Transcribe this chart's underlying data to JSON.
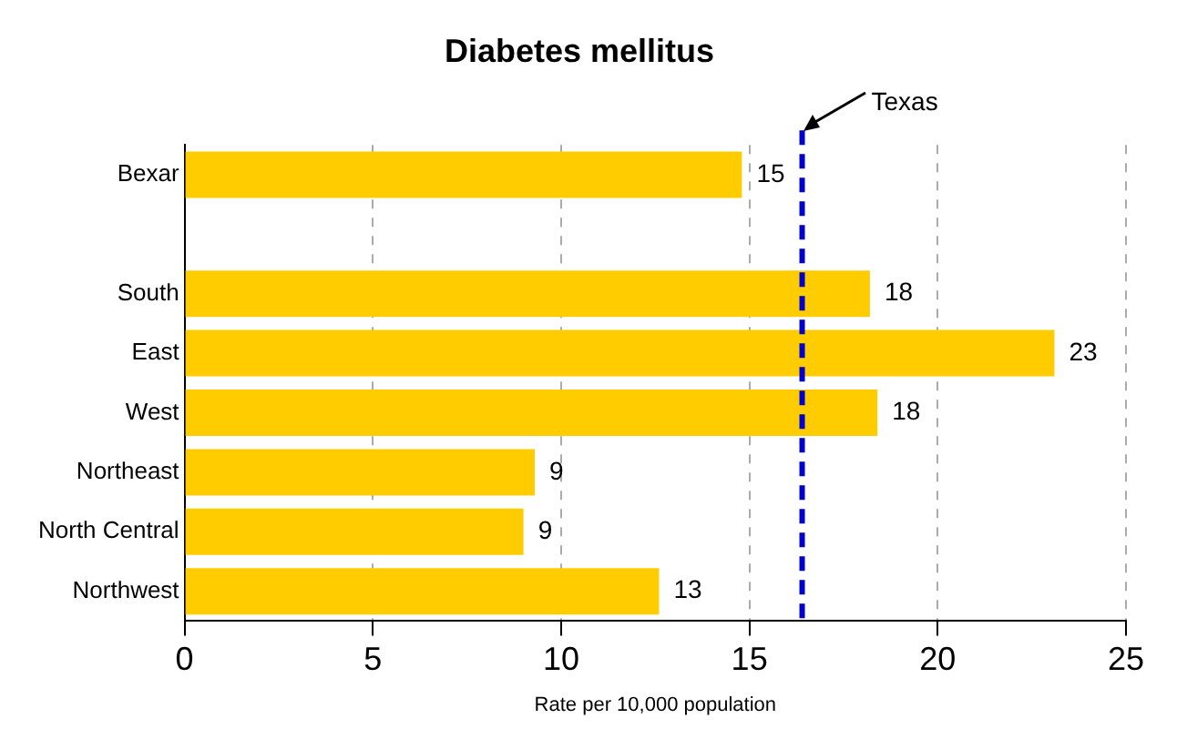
{
  "chart_data": {
    "type": "bar",
    "orientation": "horizontal",
    "title": "Diabetes mellitus",
    "xlabel": "Rate per 10,000 population",
    "categories": [
      "Bexar",
      null,
      "South",
      "East",
      "West",
      "Northeast",
      "North Central",
      "Northwest"
    ],
    "values": [
      14.8,
      null,
      18.2,
      23.1,
      18.4,
      9.3,
      9.0,
      12.6
    ],
    "value_labels": [
      "15",
      null,
      "18",
      "23",
      "18",
      "9",
      "9",
      "13"
    ],
    "color": "#ffcc00",
    "xlim": [
      0,
      25
    ],
    "xticks": [
      0,
      5,
      10,
      15,
      20,
      25
    ],
    "grid": "x",
    "ref_lines": [
      {
        "axis": "x",
        "value": 16.4,
        "label": "Texas",
        "color": "#0000cc",
        "line_style": "dashed"
      }
    ]
  }
}
